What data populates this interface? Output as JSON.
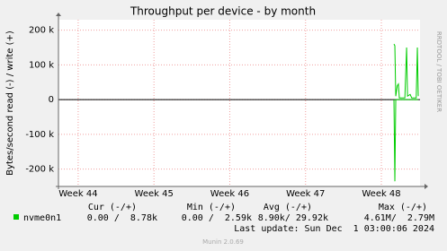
{
  "chart_data": {
    "type": "line",
    "title": "Throughput per device - by month",
    "ylabel": "Bytes/second read (-) / write (+)",
    "side_label": "RRDTOOL / TOBI OETIKER",
    "xlim": [
      43.74,
      48.51
    ],
    "xticks": [
      {
        "value": 44,
        "label": "Week 44"
      },
      {
        "value": 45,
        "label": "Week 45"
      },
      {
        "value": 46,
        "label": "Week 46"
      },
      {
        "value": 47,
        "label": "Week 47"
      },
      {
        "value": 48,
        "label": "Week 48"
      }
    ],
    "ylim": [
      -250000,
      230000
    ],
    "yticks": [
      {
        "value": 200000,
        "label": "200 k"
      },
      {
        "value": 100000,
        "label": "100 k"
      },
      0,
      {
        "value": -100000,
        "label": "-100 k"
      },
      {
        "value": -200000,
        "label": "-200 k"
      }
    ],
    "grid": true,
    "series": [
      {
        "name": "nvme0n1",
        "color": "#00cc00",
        "x": [
          48.166,
          48.178,
          48.19,
          48.21,
          48.225,
          48.237,
          48.31,
          48.333,
          48.345,
          48.38,
          48.4,
          48.46,
          48.475,
          48.487
        ],
        "values": [
          160000,
          155000,
          10000,
          40000,
          45000,
          5000,
          5000,
          150000,
          10000,
          15000,
          5000,
          5000,
          150000,
          10000
        ],
        "negative_values": [
          0,
          -235000,
          0,
          0,
          0,
          0,
          0,
          0,
          0,
          0,
          0,
          0,
          0,
          0
        ]
      }
    ],
    "legend_table": {
      "headers": [
        "Cur (-/+)",
        "Min (-/+)",
        "Avg (-/+)",
        "Max (-/+)"
      ],
      "cells": [
        "0.00 /  8.78k",
        "0.00 /  2.59k",
        "8.90k/ 29.92k",
        "4.61M/  2.79M"
      ]
    },
    "last_update": "Last update: Sun Dec  1 03:00:06 2024",
    "footer": "Munin 2.0.69"
  }
}
